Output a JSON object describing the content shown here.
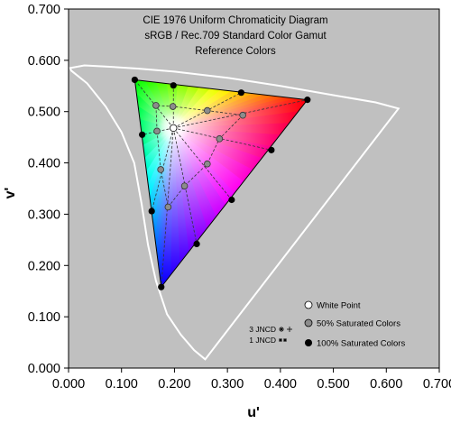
{
  "chart_data": {
    "type": "scatter",
    "title": [
      "CIE 1976 Uniform Chromaticity Diagram",
      "sRGB / Rec.709 Standard Color Gamut",
      "Reference Colors"
    ],
    "xlabel": "u'",
    "ylabel": "v'",
    "xlim": [
      0.0,
      0.7
    ],
    "ylim": [
      0.0,
      0.7
    ],
    "xticks": [
      "0.000",
      "0.100",
      "0.200",
      "0.300",
      "0.400",
      "0.500",
      "0.600",
      "0.700"
    ],
    "yticks": [
      "0.000",
      "0.100",
      "0.200",
      "0.300",
      "0.400",
      "0.500",
      "0.600",
      "0.700"
    ],
    "grid": false,
    "background": "#c0c0c0",
    "spectral_locus": [
      [
        0.258,
        0.017
      ],
      [
        0.237,
        0.035
      ],
      [
        0.212,
        0.065
      ],
      [
        0.186,
        0.105
      ],
      [
        0.165,
        0.17
      ],
      [
        0.15,
        0.24
      ],
      [
        0.138,
        0.32
      ],
      [
        0.124,
        0.4
      ],
      [
        0.1,
        0.46
      ],
      [
        0.07,
        0.51
      ],
      [
        0.035,
        0.555
      ],
      [
        0.005,
        0.58
      ],
      [
        0.003,
        0.585
      ],
      [
        0.03,
        0.59
      ],
      [
        0.07,
        0.588
      ],
      [
        0.13,
        0.584
      ],
      [
        0.2,
        0.578
      ],
      [
        0.3,
        0.566
      ],
      [
        0.4,
        0.55
      ],
      [
        0.5,
        0.532
      ],
      [
        0.58,
        0.518
      ],
      [
        0.623,
        0.506
      ]
    ],
    "gamut_triangle": {
      "red": [
        0.451,
        0.523
      ],
      "green": [
        0.125,
        0.562
      ],
      "blue": [
        0.175,
        0.158
      ]
    },
    "series": [
      {
        "name": "White Point",
        "color": "#ffffff",
        "points": [
          [
            0.198,
            0.468
          ]
        ]
      },
      {
        "name": "50% Saturated Colors",
        "color": "#8c8c8c",
        "points": [
          [
            0.167,
            0.462
          ],
          [
            0.165,
            0.512
          ],
          [
            0.197,
            0.51
          ],
          [
            0.262,
            0.502
          ],
          [
            0.329,
            0.493
          ],
          [
            0.285,
            0.447
          ],
          [
            0.262,
            0.398
          ],
          [
            0.219,
            0.355
          ],
          [
            0.188,
            0.314
          ],
          [
            0.174,
            0.387
          ]
        ]
      },
      {
        "name": "100% Saturated Colors",
        "color": "#000000",
        "points": [
          [
            0.125,
            0.562
          ],
          [
            0.198,
            0.551
          ],
          [
            0.326,
            0.537
          ],
          [
            0.451,
            0.523
          ],
          [
            0.383,
            0.425
          ],
          [
            0.308,
            0.328
          ],
          [
            0.242,
            0.242
          ],
          [
            0.175,
            0.158
          ],
          [
            0.157,
            0.306
          ],
          [
            0.139,
            0.455
          ]
        ]
      }
    ],
    "legend_placement": "bottom-right",
    "jncd_labels": [
      "3 JNCD",
      "1 JNCD"
    ]
  }
}
